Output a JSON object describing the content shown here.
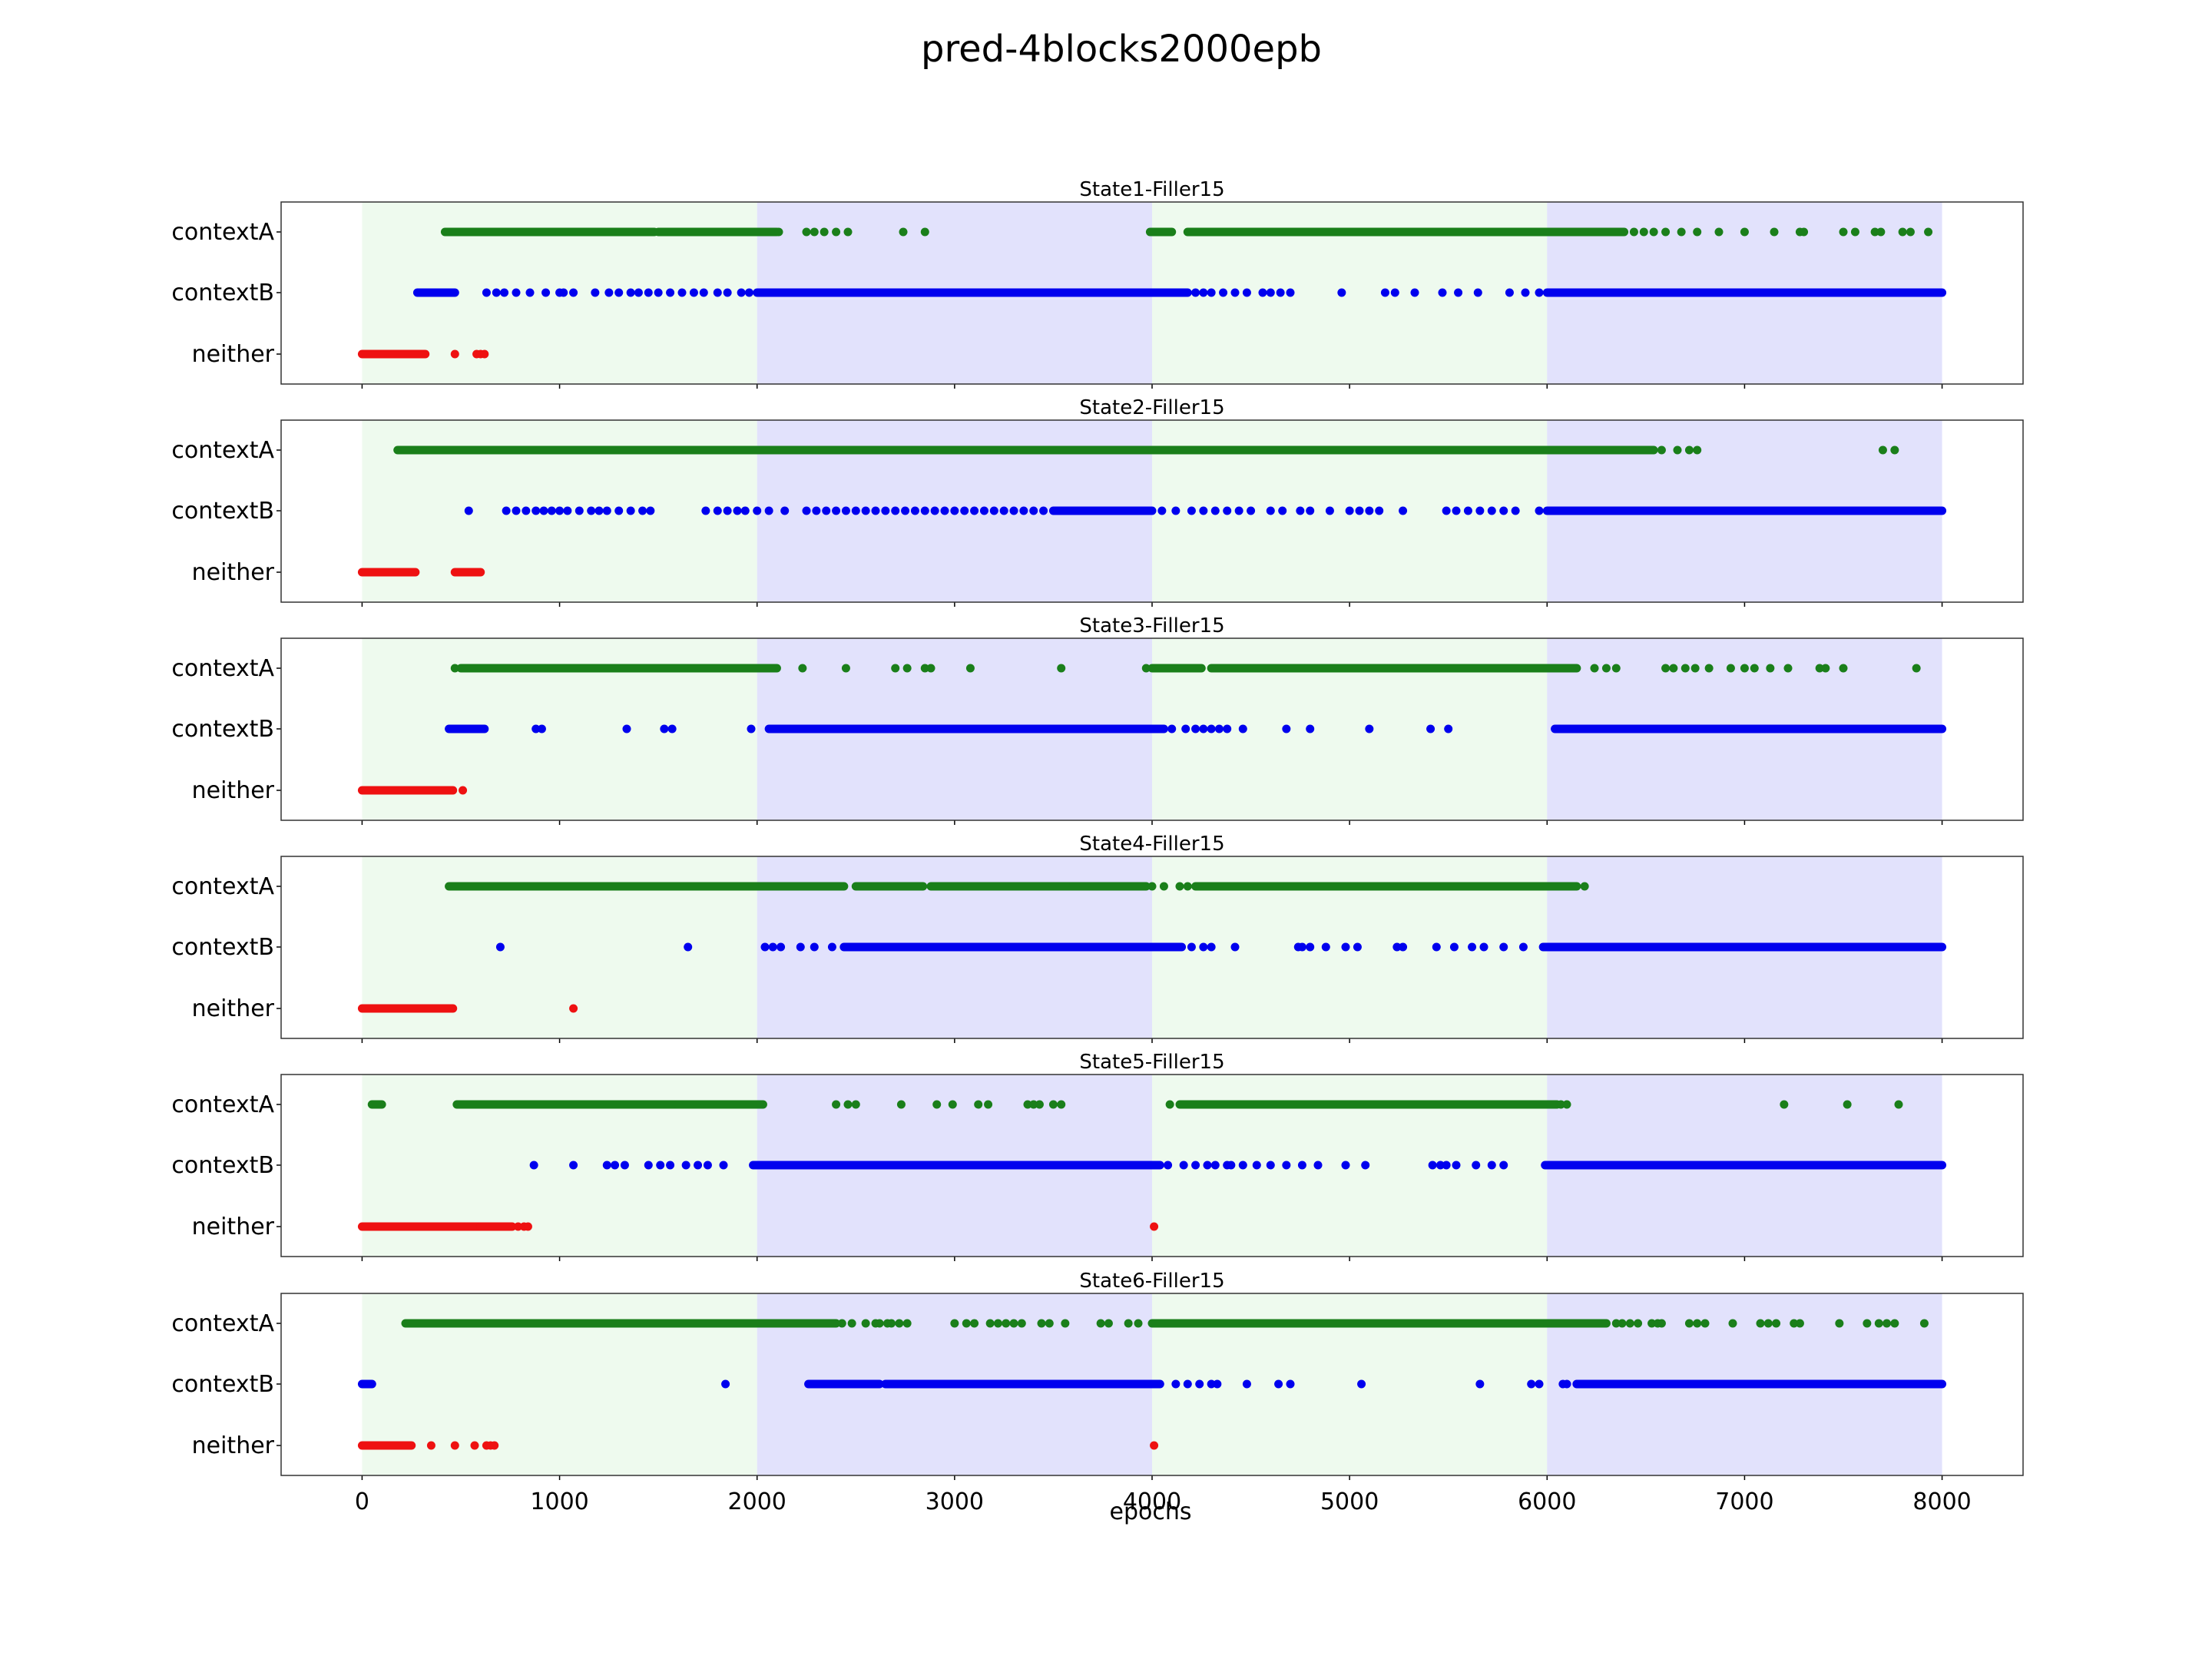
{
  "chart_data": {
    "type": "scatter",
    "title": "pred-4blocks2000epb",
    "xlabel": "epochs",
    "xlim": [
      -410,
      8410
    ],
    "xticks": [
      0,
      1000,
      2000,
      3000,
      4000,
      5000,
      6000,
      7000,
      8000
    ],
    "categories": [
      "contextA",
      "contextB",
      "neither"
    ],
    "category_colors": {
      "contextA": "#1a7f1a",
      "contextB": "#0000ee",
      "neither": "#ee1111"
    },
    "blocks": [
      {
        "start": 0,
        "end": 2000,
        "context": "contextA",
        "color": "#eefaee"
      },
      {
        "start": 2000,
        "end": 4000,
        "context": "contextB",
        "color": "#e2e2fc"
      },
      {
        "start": 4000,
        "end": 6000,
        "context": "contextA",
        "color": "#eefaee"
      },
      {
        "start": 6000,
        "end": 8000,
        "context": "contextB",
        "color": "#e2e2fc"
      }
    ],
    "panels": [
      {
        "title": "State1-Filler15",
        "contextA": {
          "runs": [
            [
              420,
              1480
            ],
            [
              1500,
              2000
            ],
            [
              2000,
              2100
            ],
            [
              3990,
              4100
            ],
            [
              4180,
              6000
            ],
            [
              6000,
              6390
            ]
          ],
          "points": [
            2110,
            2250,
            2290,
            2340,
            2400,
            2460,
            2740,
            2850,
            6440,
            6490,
            6540,
            6600,
            6680,
            6760,
            6870,
            7000,
            7150,
            7280,
            7300,
            7500,
            7560,
            7660,
            7690,
            7800,
            7840,
            7930
          ]
        },
        "contextB": {
          "runs": [
            [
              280,
              470
            ],
            [
              2000,
              4000
            ],
            [
              4000,
              4180
            ],
            [
              6000,
              6560
            ],
            [
              6560,
              8000
            ]
          ],
          "points": [
            630,
            680,
            720,
            780,
            850,
            930,
            1000,
            1020,
            1070,
            1180,
            1250,
            1300,
            1360,
            1400,
            1450,
            1500,
            1560,
            1620,
            1680,
            1730,
            1800,
            1850,
            1920,
            1960,
            4220,
            4260,
            4300,
            4360,
            4420,
            4480,
            4560,
            4600,
            4650,
            4700,
            4960,
            5180,
            5230,
            5330,
            5470,
            5550,
            5650,
            5810,
            5890,
            5960
          ]
        },
        "neither": {
          "runs": [
            [
              0,
              320
            ]
          ],
          "points": [
            470,
            580,
            600,
            620
          ]
        }
      },
      {
        "title": "State2-Filler15",
        "contextA": {
          "runs": [
            [
              180,
              1900
            ],
            [
              1900,
              2800
            ],
            [
              2800,
              4000
            ],
            [
              4000,
              6000
            ],
            [
              6000,
              6540
            ]
          ],
          "points": [
            6580,
            6660,
            6720,
            6760,
            7700,
            7760
          ]
        },
        "contextB": {
          "runs": [
            [
              6000,
              6450
            ],
            [
              6450,
              8000
            ],
            [
              3500,
              4000
            ]
          ],
          "points": [
            540,
            730,
            780,
            830,
            880,
            920,
            960,
            1000,
            1040,
            1100,
            1160,
            1200,
            1240,
            1300,
            1360,
            1420,
            1460,
            1740,
            1800,
            1850,
            1900,
            1940,
            2000,
            2060,
            2140,
            2250,
            2300,
            2350,
            2400,
            2450,
            2500,
            2550,
            2600,
            2650,
            2700,
            2750,
            2800,
            2850,
            2900,
            2950,
            3000,
            3050,
            3100,
            3150,
            3200,
            3250,
            3300,
            3350,
            3400,
            3450,
            4050,
            4120,
            4200,
            4260,
            4320,
            4380,
            4440,
            4500,
            4600,
            4660,
            4750,
            4800,
            4900,
            5000,
            5050,
            5100,
            5150,
            5270,
            5490,
            5540,
            5600,
            5660,
            5720,
            5780,
            5840,
            5960
          ]
        },
        "neither": {
          "runs": [
            [
              0,
              270
            ],
            [
              470,
              600
            ]
          ],
          "points": []
        }
      },
      {
        "title": "State3-Filler15",
        "contextA": {
          "runs": [
            [
              500,
              2100
            ],
            [
              4000,
              4250
            ],
            [
              4300,
              6000
            ],
            [
              6000,
              6150
            ]
          ],
          "points": [
            470,
            2230,
            2450,
            2700,
            2760,
            2850,
            2880,
            3080,
            3540,
            3970,
            6240,
            6300,
            6350,
            6600,
            6640,
            6700,
            6750,
            6820,
            6930,
            7000,
            7050,
            7130,
            7220,
            7380,
            7410,
            7500,
            7870
          ]
        },
        "contextB": {
          "runs": [
            [
              440,
              620
            ],
            [
              2060,
              4060
            ],
            [
              6040,
              8000
            ]
          ],
          "points": [
            880,
            910,
            1340,
            1530,
            1570,
            1970,
            4100,
            4170,
            4220,
            4260,
            4300,
            4340,
            4380,
            4460,
            4680,
            4800,
            5100,
            5410,
            5500
          ]
        },
        "neither": {
          "runs": [
            [
              0,
              460
            ]
          ],
          "points": [
            510
          ]
        }
      },
      {
        "title": "State4-Filler15",
        "contextA": {
          "runs": [
            [
              440,
              2440
            ],
            [
              2500,
              2840
            ],
            [
              2880,
              3600
            ],
            [
              3600,
              3970
            ],
            [
              4220,
              6150
            ]
          ],
          "points": [
            4000,
            4060,
            4140,
            4180,
            6190
          ]
        },
        "contextB": {
          "runs": [
            [
              2440,
              4150
            ],
            [
              5980,
              8000
            ]
          ],
          "points": [
            700,
            1650,
            2040,
            2080,
            2120,
            2220,
            2290,
            2380,
            4200,
            4260,
            4300,
            4420,
            4740,
            4760,
            4800,
            4880,
            4980,
            5040,
            5240,
            5270,
            5440,
            5530,
            5620,
            5680,
            5780,
            5880
          ]
        },
        "neither": {
          "runs": [
            [
              0,
              460
            ]
          ],
          "points": [
            1070
          ]
        }
      },
      {
        "title": "State5-Filler15",
        "contextA": {
          "runs": [
            [
              50,
              100
            ],
            [
              480,
              1600
            ],
            [
              1600,
              2030
            ],
            [
              4140,
              6050
            ]
          ],
          "points": [
            4090,
            6070,
            6100,
            2400,
            2460,
            2500,
            2730,
            2910,
            2990,
            3120,
            3170,
            3370,
            3400,
            3430,
            3500,
            3540,
            7200,
            7520,
            7780
          ]
        },
        "contextB": {
          "runs": [
            [
              1980,
              4040
            ],
            [
              5990,
              8000
            ]
          ],
          "points": [
            870,
            1070,
            1240,
            1280,
            1330,
            1450,
            1510,
            1560,
            1640,
            1700,
            1750,
            1830,
            4080,
            4160,
            4220,
            4280,
            4320,
            4380,
            4400,
            4460,
            4530,
            4600,
            4680,
            4760,
            4840,
            4980,
            5080,
            5420,
            5460,
            5490,
            5540,
            5640,
            5720,
            5780
          ]
        },
        "neither": {
          "runs": [
            [
              0,
              600
            ],
            [
              600,
              760
            ]
          ],
          "points": [
            790,
            820,
            840,
            4010
          ]
        }
      },
      {
        "title": "State6-Filler15",
        "contextA": {
          "runs": [
            [
              220,
              2400
            ],
            [
              4000,
              6000
            ],
            [
              6000,
              6300
            ]
          ],
          "points": [
            2430,
            2480,
            2550,
            2600,
            2620,
            2660,
            2680,
            2720,
            2760,
            3000,
            3060,
            3100,
            3180,
            3220,
            3260,
            3300,
            3340,
            3440,
            3480,
            3560,
            3740,
            3780,
            3880,
            3930,
            6350,
            6380,
            6420,
            6460,
            6530,
            6560,
            6580,
            6720,
            6760,
            6800,
            6940,
            7080,
            7120,
            7160,
            7250,
            7280,
            7480,
            7620,
            7680,
            7720,
            7760,
            7910
          ]
        },
        "contextB": {
          "runs": [
            [
              0,
              50
            ],
            [
              2260,
              2620
            ],
            [
              2650,
              4040
            ],
            [
              6150,
              8000
            ]
          ],
          "points": [
            1840,
            4120,
            4180,
            4240,
            4300,
            4330,
            4480,
            4640,
            4700,
            5060,
            5660,
            5920,
            5960,
            6080,
            6100
          ]
        },
        "neither": {
          "runs": [
            [
              0,
              250
            ]
          ],
          "points": [
            350,
            470,
            570,
            630,
            650,
            670,
            4010
          ]
        }
      }
    ]
  }
}
